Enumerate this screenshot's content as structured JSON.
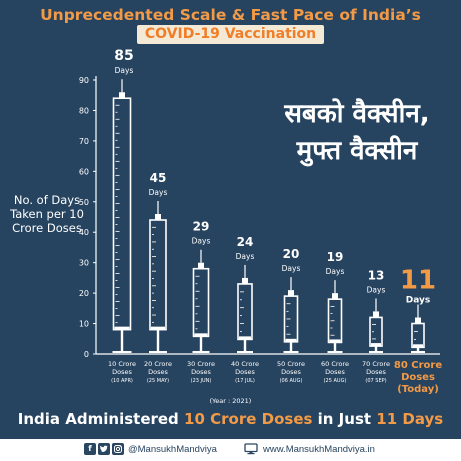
{
  "title_line1": "Unprecedented Scale & Fast Pace of India’s",
  "title_line2": "COVID-19 Vaccination",
  "slogan_line1": "सबको वैक्सीन,",
  "slogan_line2": "मुफ्त वैक्सीन",
  "year_note": "(Year : 2021)",
  "headline": {
    "part1": "India Administered ",
    "highlight1": "10 Crore Doses",
    "part2": " in Just ",
    "highlight2": "11 Days"
  },
  "footer": {
    "icons": [
      "facebook-icon",
      "twitter-icon",
      "instagram-icon"
    ],
    "handle": "@MansukhMandviya",
    "website": "www.MansukhMandviya.in"
  },
  "colors": {
    "background": "#26435f",
    "accent": "#f39a46",
    "highlight": "#f07e28"
  },
  "chart_data": {
    "type": "bar",
    "ylabel": "No. of Days Taken per 10 Crore Doses",
    "ylim": [
      0,
      90
    ],
    "yticks": [
      0,
      10,
      20,
      30,
      40,
      50,
      60,
      70,
      80,
      90
    ],
    "unit_label": "Days",
    "categories": [
      {
        "line1": "10 Crore",
        "line2": "Doses",
        "date": "(10 APR)"
      },
      {
        "line1": "20 Crore",
        "line2": "Doses",
        "date": "(25 MAY)"
      },
      {
        "line1": "30 Crore",
        "line2": "Doses",
        "date": "(23 JUN)"
      },
      {
        "line1": "40 Crore",
        "line2": "Doses",
        "date": "(17 JUL)"
      },
      {
        "line1": "50 Crore",
        "line2": "Doses",
        "date": "(06 AUG)"
      },
      {
        "line1": "60 Crore",
        "line2": "Doses",
        "date": "(25 AUG)"
      },
      {
        "line1": "70 Crore",
        "line2": "Doses",
        "date": "(07 SEP)"
      },
      {
        "line1": "80 Crore",
        "line2": "Doses",
        "date": "(Today)"
      }
    ],
    "values": [
      85,
      45,
      29,
      24,
      20,
      19,
      13,
      11
    ],
    "highlight_index": 7,
    "grid": false
  }
}
